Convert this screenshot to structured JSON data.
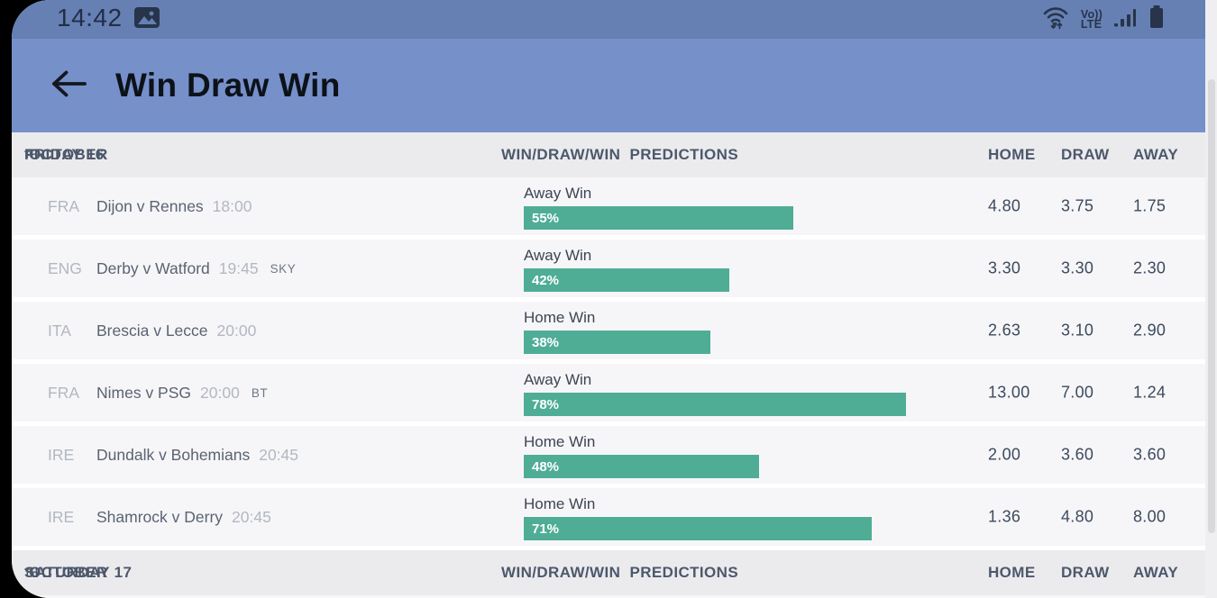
{
  "status_bar": {
    "time": "14:42",
    "volte_line1": "Vo))",
    "volte_line2": "LTE",
    "icons": [
      "image-icon",
      "wifi-icon",
      "volte-icon",
      "signal-icon",
      "battery-icon"
    ]
  },
  "header": {
    "back_icon": "left-arrow",
    "title": "Win Draw Win"
  },
  "table": {
    "sections": [
      {
        "date_day": "FRIDAY 16",
        "date_ordinal": "TH",
        "date_month": " OCTOBER",
        "predictions_label": "WIN/DRAW/WIN  PREDICTIONS",
        "col_home": "HOME",
        "col_draw": "DRAW",
        "col_away": "AWAY",
        "rows": [
          {
            "country": "FRA",
            "match": "Dijon v Rennes",
            "time": "18:00",
            "tag": "",
            "prediction": "Away Win",
            "pct": 55,
            "pct_label": "55%",
            "home": "4.80",
            "draw": "3.75",
            "away": "1.75"
          },
          {
            "country": "ENG",
            "match": "Derby v Watford",
            "time": "19:45",
            "tag": "SKY",
            "prediction": "Away Win",
            "pct": 42,
            "pct_label": "42%",
            "home": "3.30",
            "draw": "3.30",
            "away": "2.30"
          },
          {
            "country": "ITA",
            "match": "Brescia v Lecce",
            "time": "20:00",
            "tag": "",
            "prediction": "Home Win",
            "pct": 38,
            "pct_label": "38%",
            "home": "2.63",
            "draw": "3.10",
            "away": "2.90"
          },
          {
            "country": "FRA",
            "match": "Nimes v PSG",
            "time": "20:00",
            "tag": "BT",
            "prediction": "Away Win",
            "pct": 78,
            "pct_label": "78%",
            "home": "13.00",
            "draw": "7.00",
            "away": "1.24"
          },
          {
            "country": "IRE",
            "match": "Dundalk v Bohemians",
            "time": "20:45",
            "tag": "",
            "prediction": "Home Win",
            "pct": 48,
            "pct_label": "48%",
            "home": "2.00",
            "draw": "3.60",
            "away": "3.60"
          },
          {
            "country": "IRE",
            "match": "Shamrock v Derry",
            "time": "20:45",
            "tag": "",
            "prediction": "Home Win",
            "pct": 71,
            "pct_label": "71%",
            "home": "1.36",
            "draw": "4.80",
            "away": "8.00"
          }
        ]
      },
      {
        "date_day": "SATURDAY 17",
        "date_ordinal": "TH",
        "date_month": " OCTOBER",
        "predictions_label": "WIN/DRAW/WIN  PREDICTIONS",
        "col_home": "HOME",
        "col_draw": "DRAW",
        "col_away": "AWAY",
        "rows": []
      }
    ]
  },
  "colors": {
    "statusbar_bg": "#6680b4",
    "appbar_bg": "#7690ca",
    "bar_accent": "#4fad96",
    "section_bg": "#ebebee",
    "row_bg": "#f6f6f8"
  }
}
